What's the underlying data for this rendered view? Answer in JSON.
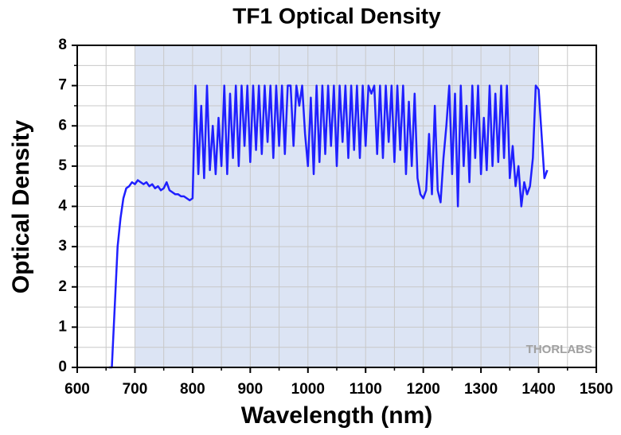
{
  "chart_data": {
    "type": "line",
    "title": "TF1 Optical Density",
    "xlabel": "Wavelength (nm)",
    "ylabel": "Optical Density",
    "watermark": "THORLABS",
    "xlim": [
      600,
      1500
    ],
    "ylim": [
      0,
      8
    ],
    "xticks": [
      600,
      700,
      800,
      900,
      1000,
      1100,
      1200,
      1300,
      1400,
      1500
    ],
    "yticks": [
      0,
      1,
      2,
      3,
      4,
      5,
      6,
      7,
      8
    ],
    "xminorticks": [
      650,
      750,
      850,
      950,
      1050,
      1150,
      1250,
      1350,
      1450
    ],
    "yminorticks": [
      0.5,
      1.5,
      2.5,
      3.5,
      4.5,
      5.5,
      6.5,
      7.5
    ],
    "grid": true,
    "shaded_region": [
      700,
      1400
    ],
    "shade_color": "#dce4f4",
    "x": [
      655,
      660,
      665,
      670,
      675,
      680,
      685,
      690,
      695,
      700,
      705,
      710,
      715,
      720,
      725,
      730,
      735,
      740,
      745,
      750,
      755,
      760,
      765,
      770,
      775,
      780,
      785,
      790,
      795,
      800,
      805,
      810,
      815,
      820,
      825,
      830,
      835,
      840,
      845,
      850,
      855,
      860,
      865,
      870,
      875,
      880,
      885,
      890,
      895,
      900,
      905,
      910,
      915,
      920,
      925,
      930,
      935,
      940,
      945,
      950,
      955,
      960,
      965,
      970,
      975,
      980,
      985,
      990,
      995,
      1000,
      1005,
      1010,
      1015,
      1020,
      1025,
      1030,
      1035,
      1040,
      1045,
      1050,
      1055,
      1060,
      1065,
      1070,
      1075,
      1080,
      1085,
      1090,
      1095,
      1100,
      1105,
      1110,
      1115,
      1120,
      1125,
      1130,
      1135,
      1140,
      1145,
      1150,
      1155,
      1160,
      1165,
      1170,
      1175,
      1180,
      1185,
      1190,
      1195,
      1200,
      1205,
      1210,
      1215,
      1220,
      1225,
      1230,
      1235,
      1240,
      1245,
      1250,
      1255,
      1260,
      1265,
      1270,
      1275,
      1280,
      1285,
      1290,
      1295,
      1300,
      1305,
      1310,
      1315,
      1320,
      1325,
      1330,
      1335,
      1340,
      1345,
      1350,
      1355,
      1360,
      1365,
      1370,
      1375,
      1380,
      1385,
      1390,
      1395,
      1400,
      1405,
      1410,
      1415
    ],
    "series": [
      {
        "name": "TF1",
        "color": "#1f1fff",
        "values": [
          0,
          0,
          1.5,
          3.0,
          3.7,
          4.2,
          4.45,
          4.5,
          4.6,
          4.55,
          4.65,
          4.6,
          4.55,
          4.6,
          4.5,
          4.55,
          4.45,
          4.5,
          4.4,
          4.45,
          4.6,
          4.4,
          4.35,
          4.3,
          4.3,
          4.25,
          4.25,
          4.2,
          4.15,
          4.2,
          7.0,
          4.8,
          6.5,
          4.7,
          7.0,
          4.9,
          6.0,
          4.8,
          6.2,
          5.0,
          7.0,
          4.8,
          6.8,
          5.2,
          7.0,
          5.0,
          7.0,
          5.5,
          7.0,
          5.1,
          7.0,
          5.4,
          7.0,
          5.3,
          7.0,
          5.6,
          7.0,
          5.2,
          7.0,
          5.5,
          7.0,
          5.3,
          7.0,
          7.0,
          5.5,
          7.0,
          6.5,
          7.0,
          5.8,
          5.0,
          6.7,
          4.8,
          7.0,
          5.1,
          7.0,
          5.3,
          7.0,
          5.5,
          7.0,
          5.0,
          7.0,
          5.6,
          7.0,
          5.2,
          7.0,
          5.4,
          7.0,
          5.2,
          7.0,
          5.5,
          7.0,
          6.8,
          7.0,
          5.3,
          7.0,
          5.2,
          7.0,
          5.6,
          7.0,
          5.1,
          7.0,
          5.4,
          7.0,
          4.8,
          6.6,
          5.0,
          6.8,
          4.7,
          4.3,
          4.2,
          4.4,
          5.8,
          4.3,
          6.5,
          4.4,
          4.1,
          5.2,
          6.0,
          7.0,
          4.8,
          6.8,
          4.0,
          7.0,
          5.0,
          6.5,
          4.6,
          7.0,
          5.2,
          7.0,
          4.8,
          6.2,
          4.9,
          7.0,
          5.0,
          6.8,
          5.1,
          7.0,
          5.2,
          7.0,
          4.7,
          5.5,
          4.5,
          5.0,
          4.0,
          4.6,
          4.3,
          4.5,
          5.2,
          7.0,
          6.9,
          5.8,
          4.7,
          4.9
        ]
      }
    ]
  }
}
